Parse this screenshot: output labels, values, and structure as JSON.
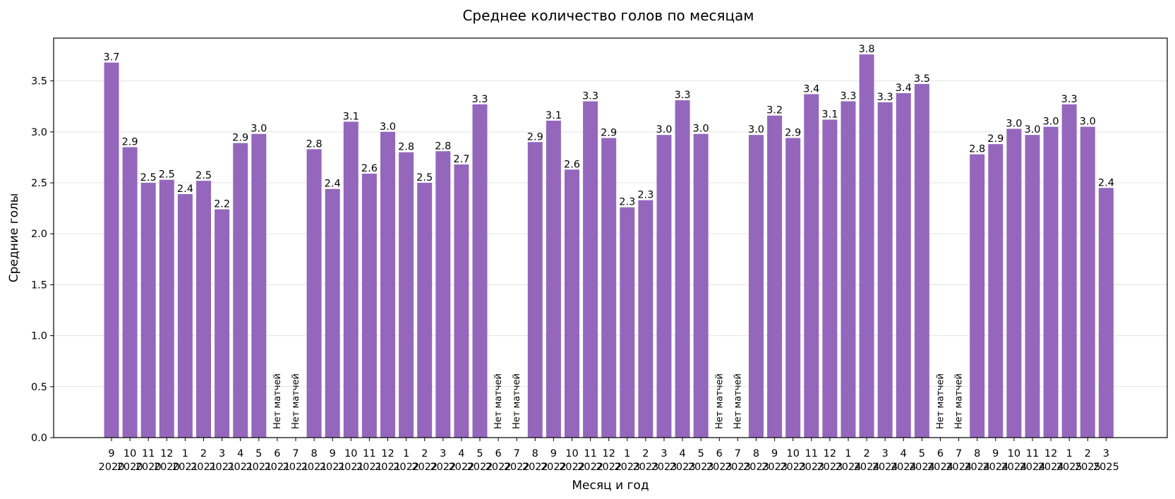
{
  "chart_data": {
    "type": "bar",
    "title": "Среднее количество голов по месяцам",
    "xlabel": "Месяц и год",
    "ylabel": "Средние голы",
    "ylim": [
      0,
      3.92
    ],
    "yticks": [
      "0.0",
      "0.5",
      "1.0",
      "1.5",
      "2.0",
      "2.5",
      "3.0",
      "3.5"
    ],
    "grid": "horizontal",
    "bar_color": "#9467bd",
    "no_match_text": "Нет матчей",
    "categories": [
      {
        "month": "9",
        "year": "2020",
        "value": 3.68,
        "label": "3.7"
      },
      {
        "month": "10",
        "year": "2020",
        "value": 2.85,
        "label": "2.9"
      },
      {
        "month": "11",
        "year": "2020",
        "value": 2.5,
        "label": "2.5"
      },
      {
        "month": "12",
        "year": "2020",
        "value": 2.53,
        "label": "2.5"
      },
      {
        "month": "1",
        "year": "2021",
        "value": 2.39,
        "label": "2.4"
      },
      {
        "month": "2",
        "year": "2021",
        "value": 2.52,
        "label": "2.5"
      },
      {
        "month": "3",
        "year": "2021",
        "value": 2.24,
        "label": "2.2"
      },
      {
        "month": "4",
        "year": "2021",
        "value": 2.89,
        "label": "2.9"
      },
      {
        "month": "5",
        "year": "2021",
        "value": 2.98,
        "label": "3.0"
      },
      {
        "month": "6",
        "year": "2021",
        "value": null,
        "label": ""
      },
      {
        "month": "7",
        "year": "2021",
        "value": null,
        "label": ""
      },
      {
        "month": "8",
        "year": "2021",
        "value": 2.83,
        "label": "2.8"
      },
      {
        "month": "9",
        "year": "2021",
        "value": 2.44,
        "label": "2.4"
      },
      {
        "month": "10",
        "year": "2021",
        "value": 3.1,
        "label": "3.1"
      },
      {
        "month": "11",
        "year": "2021",
        "value": 2.59,
        "label": "2.6"
      },
      {
        "month": "12",
        "year": "2021",
        "value": 3.0,
        "label": "3.0"
      },
      {
        "month": "1",
        "year": "2022",
        "value": 2.8,
        "label": "2.8"
      },
      {
        "month": "2",
        "year": "2022",
        "value": 2.5,
        "label": "2.5"
      },
      {
        "month": "3",
        "year": "2022",
        "value": 2.81,
        "label": "2.8"
      },
      {
        "month": "4",
        "year": "2022",
        "value": 2.68,
        "label": "2.7"
      },
      {
        "month": "5",
        "year": "2022",
        "value": 3.27,
        "label": "3.3"
      },
      {
        "month": "6",
        "year": "2022",
        "value": null,
        "label": ""
      },
      {
        "month": "7",
        "year": "2022",
        "value": null,
        "label": ""
      },
      {
        "month": "8",
        "year": "2022",
        "value": 2.9,
        "label": "2.9"
      },
      {
        "month": "9",
        "year": "2022",
        "value": 3.11,
        "label": "3.1"
      },
      {
        "month": "10",
        "year": "2022",
        "value": 2.63,
        "label": "2.6"
      },
      {
        "month": "11",
        "year": "2022",
        "value": 3.3,
        "label": "3.3"
      },
      {
        "month": "12",
        "year": "2022",
        "value": 2.94,
        "label": "2.9"
      },
      {
        "month": "1",
        "year": "2023",
        "value": 2.26,
        "label": "2.3"
      },
      {
        "month": "2",
        "year": "2023",
        "value": 2.33,
        "label": "2.3"
      },
      {
        "month": "3",
        "year": "2023",
        "value": 2.97,
        "label": "3.0"
      },
      {
        "month": "4",
        "year": "2023",
        "value": 3.31,
        "label": "3.3"
      },
      {
        "month": "5",
        "year": "2023",
        "value": 2.98,
        "label": "3.0"
      },
      {
        "month": "6",
        "year": "2023",
        "value": null,
        "label": ""
      },
      {
        "month": "7",
        "year": "2023",
        "value": null,
        "label": ""
      },
      {
        "month": "8",
        "year": "2023",
        "value": 2.97,
        "label": "3.0"
      },
      {
        "month": "9",
        "year": "2023",
        "value": 3.16,
        "label": "3.2"
      },
      {
        "month": "10",
        "year": "2023",
        "value": 2.94,
        "label": "2.9"
      },
      {
        "month": "11",
        "year": "2023",
        "value": 3.37,
        "label": "3.4"
      },
      {
        "month": "12",
        "year": "2023",
        "value": 3.12,
        "label": "3.1"
      },
      {
        "month": "1",
        "year": "2024",
        "value": 3.3,
        "label": "3.3"
      },
      {
        "month": "2",
        "year": "2024",
        "value": 3.76,
        "label": "3.8"
      },
      {
        "month": "3",
        "year": "2024",
        "value": 3.29,
        "label": "3.3"
      },
      {
        "month": "4",
        "year": "2024",
        "value": 3.38,
        "label": "3.4"
      },
      {
        "month": "5",
        "year": "2024",
        "value": 3.47,
        "label": "3.5"
      },
      {
        "month": "6",
        "year": "2024",
        "value": null,
        "label": ""
      },
      {
        "month": "7",
        "year": "2024",
        "value": null,
        "label": ""
      },
      {
        "month": "8",
        "year": "2024",
        "value": 2.78,
        "label": "2.8"
      },
      {
        "month": "9",
        "year": "2024",
        "value": 2.88,
        "label": "2.9"
      },
      {
        "month": "10",
        "year": "2024",
        "value": 3.03,
        "label": "3.0"
      },
      {
        "month": "11",
        "year": "2024",
        "value": 2.97,
        "label": "3.0"
      },
      {
        "month": "12",
        "year": "2024",
        "value": 3.05,
        "label": "3.0"
      },
      {
        "month": "1",
        "year": "2025",
        "value": 3.27,
        "label": "3.3"
      },
      {
        "month": "2",
        "year": "2025",
        "value": 3.05,
        "label": "3.0"
      },
      {
        "month": "3",
        "year": "2025",
        "value": 2.45,
        "label": "2.4"
      }
    ]
  }
}
